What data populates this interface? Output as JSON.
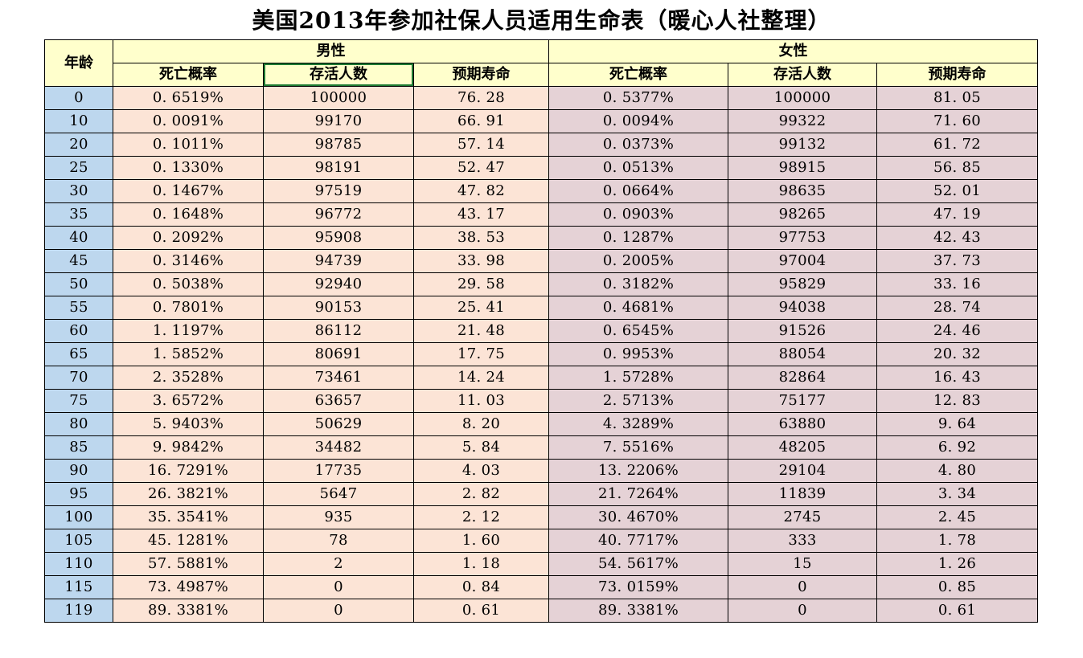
{
  "title": "美国2013年参加社保人员适用生命表（暖心人社整理）",
  "table": {
    "age_header": "年龄",
    "group_headers": {
      "male": "男性",
      "female": "女性"
    },
    "sub_headers": [
      "死亡概率",
      "存活人数",
      "预期寿命"
    ],
    "selected_header": "男性-存活人数",
    "rows": [
      {
        "age": "0",
        "male": [
          "0. 6519%",
          "100000",
          "76. 28"
        ],
        "female": [
          "0. 5377%",
          "100000",
          "81. 05"
        ]
      },
      {
        "age": "10",
        "male": [
          "0. 0091%",
          "99170",
          "66. 91"
        ],
        "female": [
          "0. 0094%",
          "99322",
          "71. 60"
        ]
      },
      {
        "age": "20",
        "male": [
          "0. 1011%",
          "98785",
          "57. 14"
        ],
        "female": [
          "0. 0373%",
          "99132",
          "61. 72"
        ]
      },
      {
        "age": "25",
        "male": [
          "0. 1330%",
          "98191",
          "52. 47"
        ],
        "female": [
          "0. 0513%",
          "98915",
          "56. 85"
        ]
      },
      {
        "age": "30",
        "male": [
          "0. 1467%",
          "97519",
          "47. 82"
        ],
        "female": [
          "0. 0664%",
          "98635",
          "52. 01"
        ]
      },
      {
        "age": "35",
        "male": [
          "0. 1648%",
          "96772",
          "43. 17"
        ],
        "female": [
          "0. 0903%",
          "98265",
          "47. 19"
        ]
      },
      {
        "age": "40",
        "male": [
          "0. 2092%",
          "95908",
          "38. 53"
        ],
        "female": [
          "0. 1287%",
          "97753",
          "42. 43"
        ]
      },
      {
        "age": "45",
        "male": [
          "0. 3146%",
          "94739",
          "33. 98"
        ],
        "female": [
          "0. 2005%",
          "97004",
          "37. 73"
        ]
      },
      {
        "age": "50",
        "male": [
          "0. 5038%",
          "92940",
          "29. 58"
        ],
        "female": [
          "0. 3182%",
          "95829",
          "33. 16"
        ]
      },
      {
        "age": "55",
        "male": [
          "0. 7801%",
          "90153",
          "25. 41"
        ],
        "female": [
          "0. 4681%",
          "94038",
          "28. 74"
        ]
      },
      {
        "age": "60",
        "male": [
          "1. 1197%",
          "86112",
          "21. 48"
        ],
        "female": [
          "0. 6545%",
          "91526",
          "24. 46"
        ]
      },
      {
        "age": "65",
        "male": [
          "1. 5852%",
          "80691",
          "17. 75"
        ],
        "female": [
          "0. 9953%",
          "88054",
          "20. 32"
        ]
      },
      {
        "age": "70",
        "male": [
          "2. 3528%",
          "73461",
          "14. 24"
        ],
        "female": [
          "1. 5728%",
          "82864",
          "16. 43"
        ]
      },
      {
        "age": "75",
        "male": [
          "3. 6572%",
          "63657",
          "11. 03"
        ],
        "female": [
          "2. 5713%",
          "75177",
          "12. 83"
        ]
      },
      {
        "age": "80",
        "male": [
          "5. 9403%",
          "50629",
          "8. 20"
        ],
        "female": [
          "4. 3289%",
          "63880",
          "9. 64"
        ]
      },
      {
        "age": "85",
        "male": [
          "9. 9842%",
          "34482",
          "5. 84"
        ],
        "female": [
          "7. 5516%",
          "48205",
          "6. 92"
        ]
      },
      {
        "age": "90",
        "male": [
          "16. 7291%",
          "17735",
          "4. 03"
        ],
        "female": [
          "13. 2206%",
          "29104",
          "4. 80"
        ]
      },
      {
        "age": "95",
        "male": [
          "26. 3821%",
          "5647",
          "2. 82"
        ],
        "female": [
          "21. 7264%",
          "11839",
          "3. 34"
        ]
      },
      {
        "age": "100",
        "male": [
          "35. 3541%",
          "935",
          "2. 12"
        ],
        "female": [
          "30. 4670%",
          "2745",
          "2. 45"
        ]
      },
      {
        "age": "105",
        "male": [
          "45. 1281%",
          "78",
          "1. 60"
        ],
        "female": [
          "40. 7717%",
          "333",
          "1. 78"
        ]
      },
      {
        "age": "110",
        "male": [
          "57. 5881%",
          "2",
          "1. 18"
        ],
        "female": [
          "54. 5617%",
          "15",
          "1. 26"
        ]
      },
      {
        "age": "115",
        "male": [
          "73. 4987%",
          "0",
          "0. 84"
        ],
        "female": [
          "73. 0159%",
          "0",
          "0. 85"
        ]
      },
      {
        "age": "119",
        "male": [
          "89. 3381%",
          "0",
          "0. 61"
        ],
        "female": [
          "89. 3381%",
          "0",
          "0. 61"
        ]
      }
    ]
  },
  "colors": {
    "header_bg": "#FFFFCC",
    "age_col_bg": "#BDD7EE",
    "male_col_bg": "#FCE4D6",
    "female_col_bg": "#E5D2D6",
    "selection_border": "#1E7B34",
    "border": "#000000"
  }
}
